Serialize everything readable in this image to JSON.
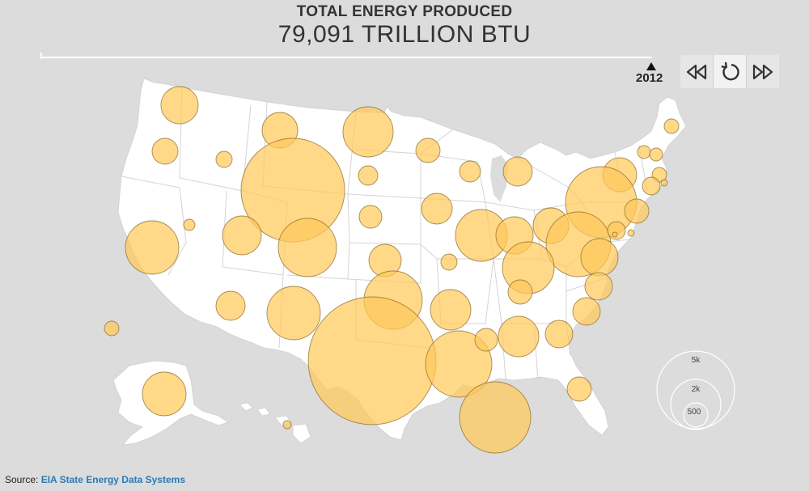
{
  "header": {
    "title": "TOTAL ENERGY PRODUCED",
    "subtitle": "79,091 TRILLION BTU"
  },
  "timeline": {
    "year": "2012"
  },
  "controls": [
    {
      "name": "rewind-icon"
    },
    {
      "name": "replay-icon"
    },
    {
      "name": "fast-forward-icon"
    }
  ],
  "legend": {
    "labels": [
      "5k",
      "2k",
      "500"
    ],
    "values": [
      5000,
      2000,
      500
    ]
  },
  "colors": {
    "bubble_fill": "#ffc95a",
    "bubble_stroke": "#8a6a2a",
    "land": "#ffffff",
    "background": "#dcdcdc",
    "link": "#2a7ab5"
  },
  "source": {
    "prefix": "Source:",
    "link_text": "EIA State Energy Data Systems"
  }
}
